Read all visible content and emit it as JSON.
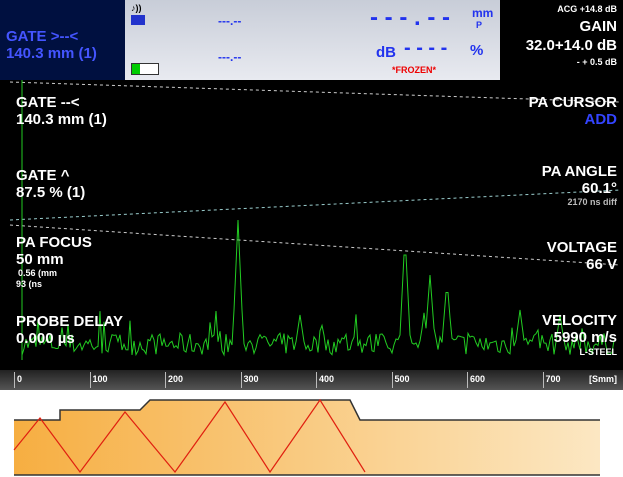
{
  "top_bar": {
    "gate_label": "GATE >--<",
    "gate_value": "140.3 mm (1)",
    "readout_1": "---.--",
    "readout_2": "---.--",
    "main_value": "- - - . - -",
    "unit_mm": "mm",
    "unit_p": "P",
    "db_label": "dB",
    "db_value": "- - - -",
    "unit_pct": "%",
    "status": "*FROZEN*",
    "acg": "ACG +14.8 dB",
    "gain_label": "GAIN",
    "gain_value": "32.0+14.0 dB",
    "gain_step": "- + 0.5 dB"
  },
  "left_panel": {
    "gate_end_label": "GATE --<",
    "gate_end_value": "140.3 mm (1)",
    "gate_height_label": "GATE ^",
    "gate_height_value": "87.5 % (1)",
    "focus_label": "PA FOCUS",
    "focus_value": "50 mm",
    "focus_size": "0.56 (mm",
    "focus_time": "93 (ns",
    "delay_label": "PROBE DELAY",
    "delay_value": "0.000 µs"
  },
  "right_panel": {
    "cursor_label": "PA CURSOR",
    "cursor_value": "ADD",
    "angle_label": "PA ANGLE",
    "angle_value": "60.1°",
    "angle_diff": "2170 ns diff",
    "voltage_label": "VOLTAGE",
    "voltage_value": "66 V",
    "velocity_label": "VELOCITY",
    "velocity_value": "5990 m/s",
    "material": "L-STEEL"
  },
  "axis": {
    "ticks": [
      0,
      100,
      200,
      300,
      400,
      500,
      600,
      700
    ],
    "unit": "[Smm]"
  }
}
